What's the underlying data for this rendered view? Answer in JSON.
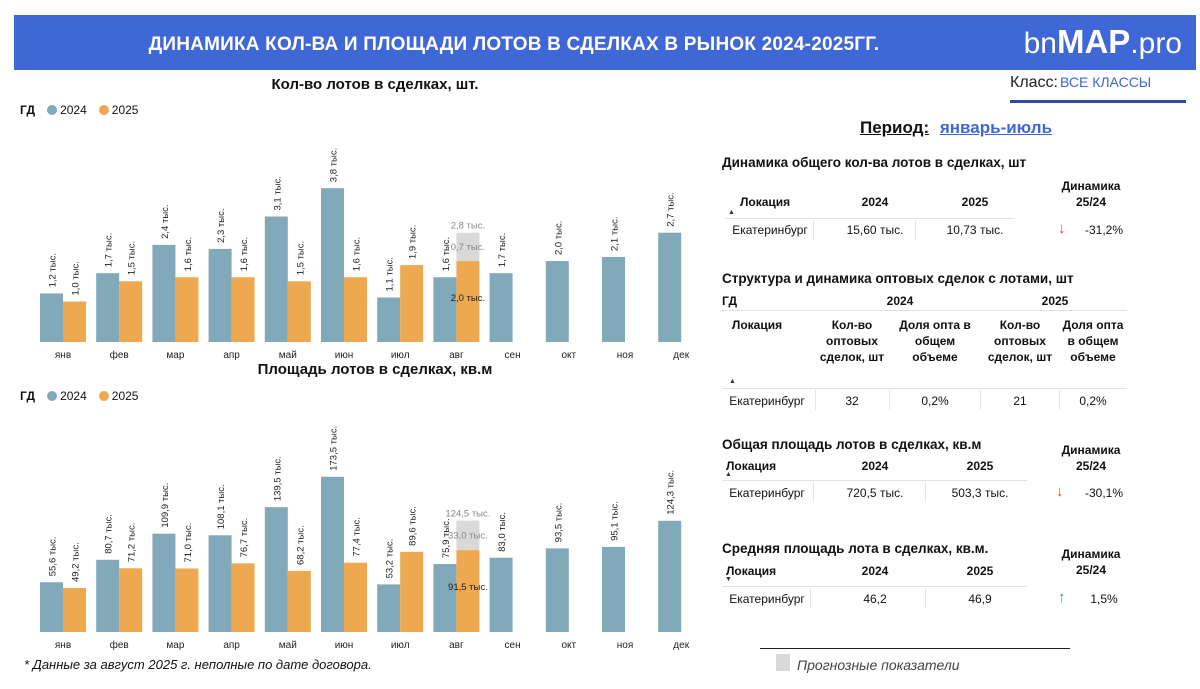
{
  "header": {
    "title": "ДИНАМИКА КОЛ-ВА И ПЛОЩАДИ ЛОТОВ В СДЕЛКАХ В РЫНОК 2024-2025ГГ.",
    "logo_part1": "bn",
    "logo_part2": "MAP",
    "logo_part3": ".pro"
  },
  "class_filter": {
    "label": "Класс:",
    "value": "ВСЕ КЛАССЫ"
  },
  "colors": {
    "header_bg": "#3f67d5",
    "series_2024": "#82a9ba",
    "series_2025": "#eea84f",
    "forecast": "#d9d9d9",
    "up": "#3c9a4a",
    "down": "#d6493a"
  },
  "chart_data": [
    {
      "type": "bar",
      "title": "Кол-во лотов в сделках, шт.",
      "legend_title": "ГД",
      "legend_position": "top-left",
      "categories": [
        "янв",
        "фев",
        "мар",
        "апр",
        "май",
        "июн",
        "июл",
        "авг",
        "сен",
        "окт",
        "ноя",
        "дек"
      ],
      "series": [
        {
          "name": "2024",
          "values": [
            1.2,
            1.7,
            2.4,
            2.3,
            3.1,
            3.8,
            1.1,
            1.6,
            1.7,
            2.0,
            2.1,
            2.7
          ],
          "labels": [
            "1,2 тыс.",
            "1,7 тыс.",
            "2,4 тыс.",
            "2,3 тыс.",
            "3,1 тыс.",
            "3,8 тыс.",
            "1,1 тыс.",
            "1,6 тыс.",
            "1,7 тыс.",
            "2,0 тыс.",
            "2,1 тыс.",
            "2,7 тыс."
          ]
        },
        {
          "name": "2025",
          "values": [
            1.0,
            1.5,
            1.6,
            1.6,
            1.5,
            1.6,
            1.9,
            2.0,
            null,
            null,
            null,
            null
          ],
          "labels": [
            "1,0 тыс.",
            "1,5 тыс.",
            "1,6 тыс.",
            "1,6 тыс.",
            "1,5 тыс.",
            "1,6 тыс.",
            "1,9 тыс.",
            "2,0 тыс.",
            "",
            "",
            "",
            ""
          ]
        }
      ],
      "forecast": {
        "category": "авг",
        "value": 0.7,
        "total": 2.8,
        "label": "0,7 тыс.",
        "total_label": "2,8 тыс."
      },
      "ylim": [
        0,
        4.2
      ]
    },
    {
      "type": "bar",
      "title": "Площадь лотов в сделках, кв.м",
      "legend_title": "ГД",
      "legend_position": "top-left",
      "categories": [
        "янв",
        "фев",
        "мар",
        "апр",
        "май",
        "июн",
        "июл",
        "авг",
        "сен",
        "окт",
        "ноя",
        "дек"
      ],
      "series": [
        {
          "name": "2024",
          "values": [
            55.6,
            80.7,
            109.9,
            108.1,
            139.5,
            173.5,
            53.2,
            75.9,
            83.0,
            93.5,
            95.1,
            124.3
          ],
          "labels": [
            "55,6 тыс.",
            "80,7 тыс.",
            "109,9 тыс.",
            "108,1 тыс.",
            "139,5 тыс.",
            "173,5 тыс.",
            "53,2 тыс.",
            "75,9 тыс.",
            "83,0 тыс.",
            "93,5 тыс.",
            "95,1 тыс.",
            "124,3 тыс."
          ]
        },
        {
          "name": "2025",
          "values": [
            49.2,
            71.2,
            71.0,
            76.7,
            68.2,
            77.4,
            89.6,
            91.5,
            null,
            null,
            null,
            null
          ],
          "labels": [
            "49,2 тыс.",
            "71,2 тыс.",
            "71,0 тыс.",
            "76,7 тыс.",
            "68,2 тыс.",
            "77,4 тыс.",
            "89,6 тыс.",
            "91,5 тыс.",
            "",
            "",
            "",
            ""
          ]
        }
      ],
      "forecast": {
        "category": "авг",
        "value": 33.0,
        "total": 124.5,
        "label": "33,0 тыс.",
        "total_label": "124,5 тыс."
      },
      "ylim": [
        0,
        190
      ]
    }
  ],
  "footnote": "* Данные за август 2025 г. неполные по дате договора.",
  "period": {
    "label": "Период:",
    "value": "январь-июль"
  },
  "sections": {
    "count": {
      "title": "Динамика общего кол-ва лотов в сделках, шт",
      "col_location": "Локация",
      "col_2024": "2024",
      "col_2025": "2025",
      "col_dyn": "Динамика 25/24",
      "row": {
        "location": "Екатеринбург",
        "v2024": "15,60 тыс.",
        "v2025": "10,73 тыс.",
        "dyn": "-31,2%",
        "trend": "down"
      }
    },
    "wholesale": {
      "title": "Структура и динамика оптовых сделок с лотами, шт",
      "gd": "ГД",
      "year1": "2024",
      "year2": "2025",
      "col_location": "Локация",
      "col_count": "Кол-во оптовых сделок, шт",
      "col_share": "Доля опта в общем объеме",
      "col_count2": "Кол-во оптовых сделок, шт",
      "col_share2": "Доля опта в общем объеме",
      "row": {
        "location": "Екатеринбург",
        "c2024": "32",
        "s2024": "0,2%",
        "c2025": "21",
        "s2025": "0,2%"
      }
    },
    "area": {
      "title": "Общая площадь лотов в сделках, кв.м",
      "col_location": "Локация",
      "col_2024": "2024",
      "col_2025": "2025",
      "col_dyn": "Динамика 25/24",
      "row": {
        "location": "Екатеринбург",
        "v2024": "720,5 тыс.",
        "v2025": "503,3 тыс.",
        "dyn": "-30,1%",
        "trend": "down"
      }
    },
    "avg": {
      "title": "Средняя площадь лота в сделках, кв.м.",
      "col_location": "Локация",
      "col_2024": "2024",
      "col_2025": "2025",
      "col_dyn": "Динамика 25/24",
      "row": {
        "location": "Екатеринбург",
        "v2024": "46,2",
        "v2025": "46,9",
        "dyn": "1,5%",
        "trend": "up"
      }
    }
  },
  "forecast_legend": "Прогнозные показатели"
}
